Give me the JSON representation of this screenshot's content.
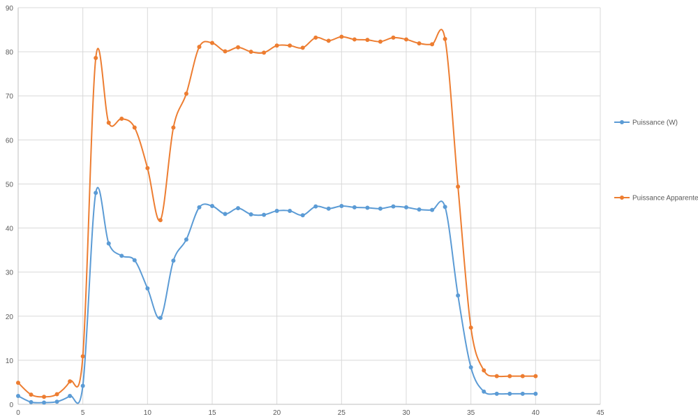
{
  "chart_data": {
    "type": "line",
    "smooth": true,
    "markers": "circle",
    "grid": {
      "horizontal": true,
      "vertical": true
    },
    "legend_position": "right",
    "xlim": [
      0,
      45
    ],
    "ylim": [
      0,
      90
    ],
    "x_ticks": [
      0,
      5,
      10,
      15,
      20,
      25,
      30,
      35,
      40,
      45
    ],
    "y_ticks": [
      0,
      10,
      20,
      30,
      40,
      50,
      60,
      70,
      80,
      90
    ],
    "x": [
      0,
      1,
      2,
      3,
      4,
      5,
      6,
      7,
      8,
      9,
      10,
      11,
      12,
      13,
      14,
      15,
      16,
      17,
      18,
      19,
      20,
      21,
      22,
      23,
      24,
      25,
      26,
      27,
      28,
      29,
      30,
      31,
      32,
      33,
      34,
      35,
      36,
      37,
      38,
      39,
      40
    ],
    "series": [
      {
        "name": "Puissance (W)",
        "color": "#5b9bd5",
        "values": [
          1.9,
          0.5,
          0.4,
          0.6,
          1.9,
          4.2,
          48.0,
          36.5,
          33.7,
          32.7,
          26.3,
          19.6,
          32.6,
          37.4,
          44.7,
          45.0,
          43.2,
          44.5,
          43.1,
          43.0,
          43.9,
          43.9,
          42.9,
          44.9,
          44.4,
          45.0,
          44.7,
          44.6,
          44.4,
          44.9,
          44.7,
          44.2,
          44.1,
          44.8,
          24.7,
          8.4,
          2.9,
          2.4,
          2.4,
          2.4,
          2.4
        ]
      },
      {
        "name": "Puissance Apparente",
        "color": "#ed7d31",
        "values": [
          4.9,
          2.2,
          1.7,
          2.3,
          5.2,
          10.9,
          78.6,
          63.9,
          64.8,
          62.8,
          53.6,
          41.8,
          62.8,
          70.5,
          81.1,
          82.0,
          80.1,
          81.0,
          80.0,
          79.8,
          81.4,
          81.4,
          80.9,
          83.2,
          82.5,
          83.4,
          82.8,
          82.7,
          82.3,
          83.2,
          82.8,
          81.9,
          81.7,
          82.9,
          49.4,
          17.4,
          7.7,
          6.4,
          6.4,
          6.4,
          6.4
        ]
      }
    ]
  }
}
